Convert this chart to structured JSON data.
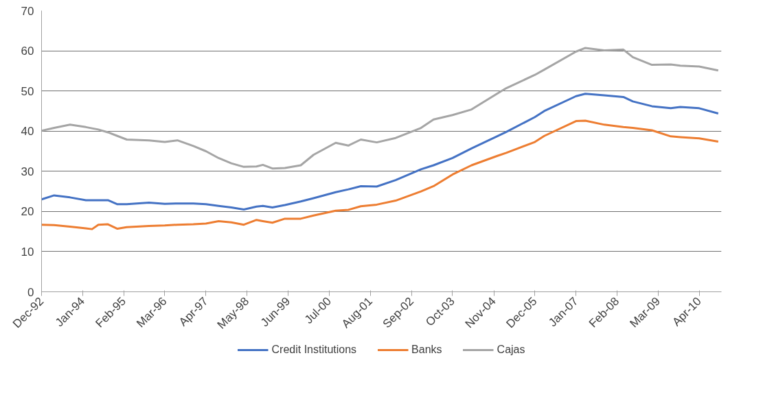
{
  "chart_data": {
    "type": "line",
    "x": [
      "1992-12",
      "1993-04",
      "1993-09",
      "1994-02",
      "1994-04",
      "1994-06",
      "1994-09",
      "1994-12",
      "1995-03",
      "1995-10",
      "1996-03",
      "1996-07",
      "1996-12",
      "1997-04",
      "1997-08",
      "1997-12",
      "1998-04",
      "1998-08",
      "1998-10",
      "1999-01",
      "1999-05",
      "1999-10",
      "2000-02",
      "2000-09",
      "2001-01",
      "2001-05",
      "2001-10",
      "2002-04",
      "2002-12",
      "2003-04",
      "2003-10",
      "2004-04",
      "2004-12",
      "2005-03",
      "2005-12",
      "2006-03",
      "2007-01",
      "2007-04",
      "2007-10",
      "2008-04",
      "2008-07",
      "2009-01",
      "2009-07",
      "2009-10",
      "2010-04",
      "2010-10"
    ],
    "series": [
      {
        "name": "Credit Institutions",
        "color": "#4472c4",
        "values": [
          23,
          24,
          23.5,
          22.8,
          22.8,
          22.8,
          22.8,
          21.8,
          21.8,
          22.2,
          21.9,
          22,
          22,
          21.8,
          21.4,
          21,
          20.5,
          21.2,
          21.4,
          21,
          21.6,
          22.5,
          23.3,
          24.8,
          25.5,
          26.3,
          26.2,
          27.8,
          30.5,
          31.5,
          33.3,
          35.7,
          38.7,
          39.8,
          43.5,
          45,
          48.7,
          49.3,
          48.9,
          48.5,
          47.4,
          46.2,
          45.7,
          46,
          45.7,
          44.4
        ]
      },
      {
        "name": "Banks",
        "color": "#ed7d31",
        "values": [
          16.7,
          16.6,
          16.2,
          15.8,
          15.6,
          16.7,
          16.8,
          15.7,
          16.1,
          16.4,
          16.5,
          16.7,
          16.8,
          17,
          17.6,
          17.3,
          16.7,
          17.9,
          17.6,
          17.2,
          18.2,
          18.2,
          19,
          20.2,
          20.4,
          21.3,
          21.7,
          22.7,
          25,
          26.3,
          29.2,
          31.5,
          33.8,
          34.6,
          37.3,
          38.8,
          42.5,
          42.6,
          41.6,
          41,
          40.8,
          40.2,
          38.7,
          38.5,
          38.2,
          37.4
        ]
      },
      {
        "name": "Cajas",
        "color": "#a5a5a5",
        "values": [
          40.1,
          40.8,
          41.6,
          41,
          40.7,
          40.4,
          39.7,
          38.8,
          37.9,
          37.7,
          37.3,
          37.7,
          36.3,
          35,
          33.3,
          32,
          31.1,
          31.2,
          31.6,
          30.7,
          30.8,
          31.5,
          34.1,
          37.1,
          36.4,
          37.9,
          37.2,
          38.3,
          40.8,
          42.9,
          44,
          45.4,
          49.3,
          50.7,
          54,
          55.3,
          59.8,
          60.7,
          60.1,
          60.3,
          58.4,
          56.5,
          56.6,
          56.3,
          56.1,
          55.1
        ]
      }
    ],
    "xlim": [
      "1992-12",
      "2010-11"
    ],
    "xticks": [
      {
        "value": "1992-12",
        "label": "Dec-92"
      },
      {
        "value": "1994-01",
        "label": "Jan-94"
      },
      {
        "value": "1995-02",
        "label": "Feb-95"
      },
      {
        "value": "1996-03",
        "label": "Mar-96"
      },
      {
        "value": "1997-04",
        "label": "Apr-97"
      },
      {
        "value": "1998-05",
        "label": "May-98"
      },
      {
        "value": "1999-06",
        "label": "Jun-99"
      },
      {
        "value": "2000-07",
        "label": "Jul-00"
      },
      {
        "value": "2001-08",
        "label": "Aug-01"
      },
      {
        "value": "2002-09",
        "label": "Sep-02"
      },
      {
        "value": "2003-10",
        "label": "Oct-03"
      },
      {
        "value": "2004-11",
        "label": "Nov-04"
      },
      {
        "value": "2005-12",
        "label": "Dec-05"
      },
      {
        "value": "2007-01",
        "label": "Jan-07"
      },
      {
        "value": "2008-02",
        "label": "Feb-08"
      },
      {
        "value": "2009-03",
        "label": "Mar-09"
      },
      {
        "value": "2010-04",
        "label": "Apr-10"
      }
    ],
    "ylim": [
      0,
      70
    ],
    "yticks": [
      0,
      10,
      20,
      30,
      40,
      50,
      60,
      70
    ],
    "grid": "y",
    "legend": "bottom",
    "line_style": "solid",
    "marker": "none"
  }
}
